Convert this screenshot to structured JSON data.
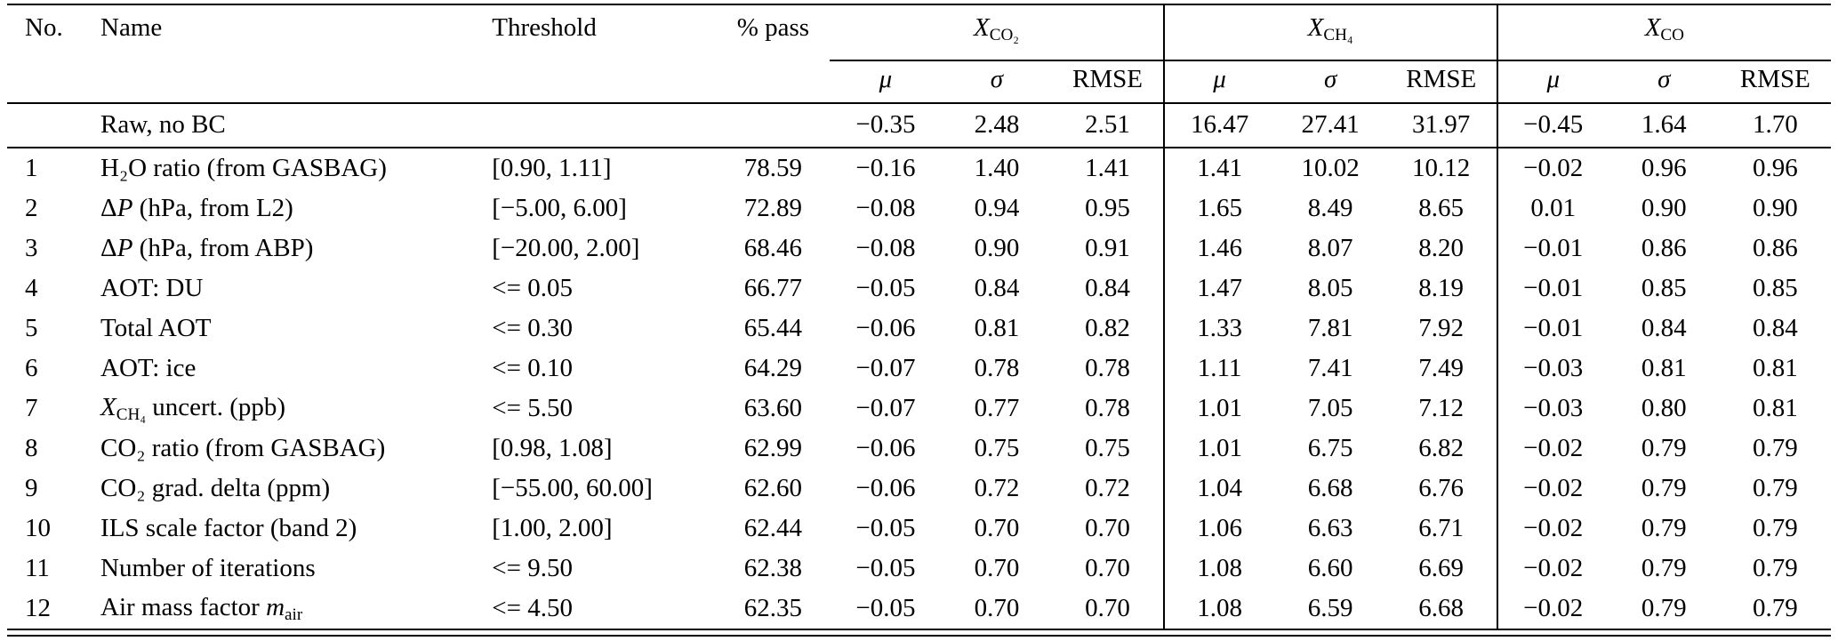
{
  "table": {
    "col_headers": {
      "no": "No.",
      "name": "Name",
      "threshold": "Threshold",
      "pass": "% pass"
    },
    "stat_headers": [
      {
        "id": "mu",
        "segments": [
          {
            "t": "μ",
            "s": "i"
          }
        ]
      },
      {
        "id": "sigma",
        "segments": [
          {
            "t": "σ",
            "s": "i"
          }
        ]
      },
      {
        "id": "rmse",
        "segments": [
          {
            "t": "RMSE"
          }
        ]
      }
    ],
    "groups": [
      {
        "id": "xco2",
        "segments": [
          {
            "t": "X",
            "s": "i"
          },
          {
            "t": "CO₂",
            "s": "sub"
          }
        ]
      },
      {
        "id": "xch4",
        "segments": [
          {
            "t": "X",
            "s": "i"
          },
          {
            "t": "CH₄",
            "s": "sub"
          }
        ]
      },
      {
        "id": "xco",
        "segments": [
          {
            "t": "X",
            "s": "i"
          },
          {
            "t": "CO",
            "s": "sub"
          }
        ]
      }
    ],
    "raw_row": {
      "name": "Raw, no BC",
      "stats": [
        "−0.35",
        "2.48",
        "2.51",
        "16.47",
        "27.41",
        "31.97",
        "−0.45",
        "1.64",
        "1.70"
      ]
    },
    "rows": [
      {
        "no": "1",
        "name": [
          {
            "t": "H₂O ratio (from GASBAG)"
          }
        ],
        "threshold": "[0.90, 1.11]",
        "pass": "78.59",
        "stats": [
          "−0.16",
          "1.40",
          "1.41",
          "1.41",
          "10.02",
          "10.12",
          "−0.02",
          "0.96",
          "0.96"
        ]
      },
      {
        "no": "2",
        "name": [
          {
            "t": "Δ"
          },
          {
            "t": "P",
            "s": "i"
          },
          {
            "t": " (hPa, from L2)"
          }
        ],
        "threshold": "[−5.00, 6.00]",
        "pass": "72.89",
        "stats": [
          "−0.08",
          "0.94",
          "0.95",
          "1.65",
          "8.49",
          "8.65",
          "0.01",
          "0.90",
          "0.90"
        ]
      },
      {
        "no": "3",
        "name": [
          {
            "t": "Δ"
          },
          {
            "t": "P",
            "s": "i"
          },
          {
            "t": " (hPa, from ABP)"
          }
        ],
        "threshold": "[−20.00, 2.00]",
        "pass": "68.46",
        "stats": [
          "−0.08",
          "0.90",
          "0.91",
          "1.46",
          "8.07",
          "8.20",
          "−0.01",
          "0.86",
          "0.86"
        ]
      },
      {
        "no": "4",
        "name": [
          {
            "t": "AOT: DU"
          }
        ],
        "threshold": "<= 0.05",
        "pass": "66.77",
        "stats": [
          "−0.05",
          "0.84",
          "0.84",
          "1.47",
          "8.05",
          "8.19",
          "−0.01",
          "0.85",
          "0.85"
        ]
      },
      {
        "no": "5",
        "name": [
          {
            "t": "Total AOT"
          }
        ],
        "threshold": "<= 0.30",
        "pass": "65.44",
        "stats": [
          "−0.06",
          "0.81",
          "0.82",
          "1.33",
          "7.81",
          "7.92",
          "−0.01",
          "0.84",
          "0.84"
        ]
      },
      {
        "no": "6",
        "name": [
          {
            "t": "AOT: ice"
          }
        ],
        "threshold": "<= 0.10",
        "pass": "64.29",
        "stats": [
          "−0.07",
          "0.78",
          "0.78",
          "1.11",
          "7.41",
          "7.49",
          "−0.03",
          "0.81",
          "0.81"
        ]
      },
      {
        "no": "7",
        "name": [
          {
            "t": "X",
            "s": "i"
          },
          {
            "t": "CH₄",
            "s": "sub"
          },
          {
            "t": " uncert. (ppb)"
          }
        ],
        "threshold": "<= 5.50",
        "pass": "63.60",
        "stats": [
          "−0.07",
          "0.77",
          "0.78",
          "1.01",
          "7.05",
          "7.12",
          "−0.03",
          "0.80",
          "0.81"
        ]
      },
      {
        "no": "8",
        "name": [
          {
            "t": "CO₂ ratio (from GASBAG)"
          }
        ],
        "threshold": "[0.98, 1.08]",
        "pass": "62.99",
        "stats": [
          "−0.06",
          "0.75",
          "0.75",
          "1.01",
          "6.75",
          "6.82",
          "−0.02",
          "0.79",
          "0.79"
        ]
      },
      {
        "no": "9",
        "name": [
          {
            "t": "CO₂ grad. delta (ppm)"
          }
        ],
        "threshold": "[−55.00, 60.00]",
        "pass": "62.60",
        "stats": [
          "−0.06",
          "0.72",
          "0.72",
          "1.04",
          "6.68",
          "6.76",
          "−0.02",
          "0.79",
          "0.79"
        ]
      },
      {
        "no": "10",
        "name": [
          {
            "t": "ILS scale factor (band 2)"
          }
        ],
        "threshold": "[1.00, 2.00]",
        "pass": "62.44",
        "stats": [
          "−0.05",
          "0.70",
          "0.70",
          "1.06",
          "6.63",
          "6.71",
          "−0.02",
          "0.79",
          "0.79"
        ]
      },
      {
        "no": "11",
        "name": [
          {
            "t": "Number of iterations"
          }
        ],
        "threshold": "<= 9.50",
        "pass": "62.38",
        "stats": [
          "−0.05",
          "0.70",
          "0.70",
          "1.08",
          "6.60",
          "6.69",
          "−0.02",
          "0.79",
          "0.79"
        ]
      },
      {
        "no": "12",
        "name": [
          {
            "t": "Air mass factor "
          },
          {
            "t": "m",
            "s": "i"
          },
          {
            "t": "air",
            "s": "sub"
          }
        ],
        "threshold": "<= 4.50",
        "pass": "62.35",
        "stats": [
          "−0.05",
          "0.70",
          "0.70",
          "1.08",
          "6.59",
          "6.68",
          "−0.02",
          "0.79",
          "0.79"
        ]
      }
    ]
  }
}
